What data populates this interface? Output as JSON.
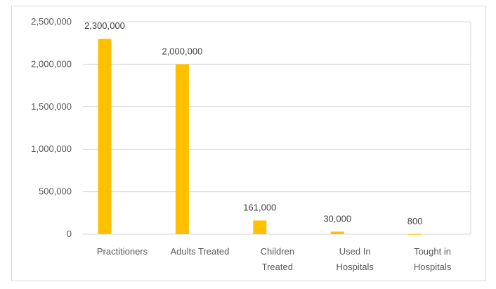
{
  "chart_data": {
    "type": "bar",
    "categories": [
      [
        "Practitioners"
      ],
      [
        "Adults Treated"
      ],
      [
        "Children",
        "Treated"
      ],
      [
        "Used In",
        "Hospitals"
      ],
      [
        "Tought in",
        "Hospitals"
      ]
    ],
    "values": [
      2300000,
      2000000,
      161000,
      30000,
      800
    ],
    "data_labels": [
      "2,300,000",
      "2,000,000",
      "161,000",
      "30,000",
      "800"
    ],
    "y_ticks": [
      0,
      500000,
      1000000,
      1500000,
      2000000,
      2500000
    ],
    "y_tick_labels": [
      "0",
      "500,000",
      "1,000,000",
      "1,500,000",
      "2,000,000",
      "2,500,000"
    ],
    "ylim": [
      0,
      2500000
    ],
    "grid": true,
    "legend": "none",
    "bar_color": "#FFC000",
    "grid_color": "#d9d9d9"
  }
}
